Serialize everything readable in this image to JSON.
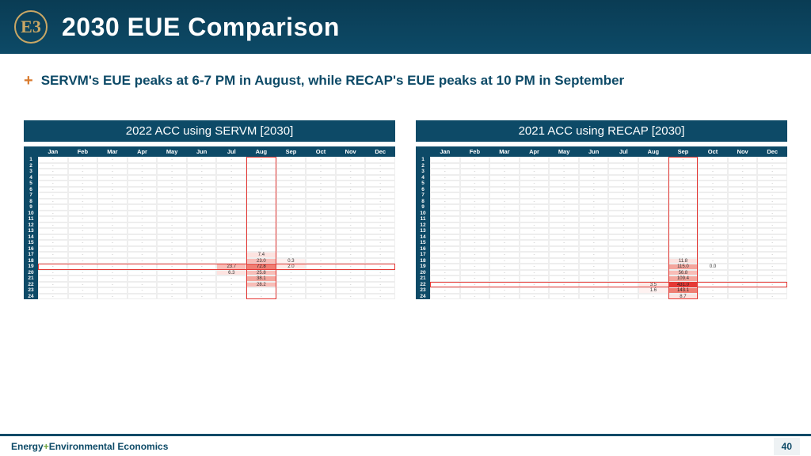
{
  "header": {
    "title": "2030 EUE Comparison",
    "logo_text": "E3",
    "logo_color": "#c9a765"
  },
  "bullet": {
    "marker": "+",
    "text": "SERVM's EUE peaks at 6-7 PM in August, while RECAP's EUE peaks at 10 PM in September"
  },
  "months": [
    "Jan",
    "Feb",
    "Mar",
    "Apr",
    "May",
    "Jun",
    "Jul",
    "Aug",
    "Sep",
    "Oct",
    "Nov",
    "Dec"
  ],
  "hours": [
    "1",
    "2",
    "3",
    "4",
    "5",
    "6",
    "7",
    "8",
    "9",
    "10",
    "11",
    "12",
    "13",
    "14",
    "15",
    "16",
    "17",
    "18",
    "19",
    "20",
    "21",
    "22",
    "23",
    "24"
  ],
  "panels": [
    {
      "title": "2022 ACC using SERVM [2030]",
      "type": "heatmap",
      "highlight_col": 7,
      "highlight_row": 18,
      "cells": [
        {
          "r": 17,
          "c": 8,
          "v": "7.4",
          "bg": "#fde3e0"
        },
        {
          "r": 18,
          "c": 8,
          "v": "23.0",
          "bg": "#f8bdb7"
        },
        {
          "r": 18,
          "c": 9,
          "v": "0.3",
          "bg": "#fef2f1"
        },
        {
          "r": 19,
          "c": 7,
          "v": "23.7",
          "bg": "#f8bdb7"
        },
        {
          "r": 19,
          "c": 8,
          "v": "72.8",
          "bg": "#ef7e73"
        },
        {
          "r": 19,
          "c": 9,
          "v": "2.0",
          "bg": "#fdeae7"
        },
        {
          "r": 20,
          "c": 7,
          "v": "6.3",
          "bg": "#fde3e0"
        },
        {
          "r": 20,
          "c": 8,
          "v": "25.8",
          "bg": "#f8bdb7"
        },
        {
          "r": 21,
          "c": 8,
          "v": "38.1",
          "bg": "#f4a69d"
        },
        {
          "r": 22,
          "c": 8,
          "v": "28.2",
          "bg": "#f8bdb7"
        }
      ],
      "grid_color": "#eeeeee",
      "outline_color": "#e53935"
    },
    {
      "title": "2021 ACC using RECAP [2030]",
      "type": "heatmap",
      "highlight_col": 8,
      "highlight_row": 21,
      "cells": [
        {
          "r": 18,
          "c": 9,
          "v": "11.8",
          "bg": "#fde3e0"
        },
        {
          "r": 19,
          "c": 9,
          "v": "115.0",
          "bg": "#f4a69d"
        },
        {
          "r": 19,
          "c": 10,
          "v": "0.0",
          "bg": "#ffffff"
        },
        {
          "r": 20,
          "c": 9,
          "v": "56.8",
          "bg": "#f8bdb7"
        },
        {
          "r": 21,
          "c": 9,
          "v": "109.4",
          "bg": "#f4a69d"
        },
        {
          "r": 22,
          "c": 8,
          "v": "3.5",
          "bg": "#fdeae7"
        },
        {
          "r": 22,
          "c": 9,
          "v": "431.0",
          "bg": "#e53935"
        },
        {
          "r": 23,
          "c": 8,
          "v": "1.6",
          "bg": "#fef2f1"
        },
        {
          "r": 23,
          "c": 9,
          "v": "143.1",
          "bg": "#ef7e73"
        },
        {
          "r": 24,
          "c": 9,
          "v": "8.7",
          "bg": "#fde3e0"
        }
      ],
      "grid_color": "#eeeeee",
      "outline_color": "#e53935"
    }
  ],
  "footer": {
    "brand_pre": "Energy",
    "brand_plus": "+",
    "brand_post": "Environmental Economics",
    "page": "40"
  },
  "colors": {
    "header_bg": "#0d4a67",
    "accent": "#d97b2e",
    "text_primary": "#0d4a67"
  }
}
